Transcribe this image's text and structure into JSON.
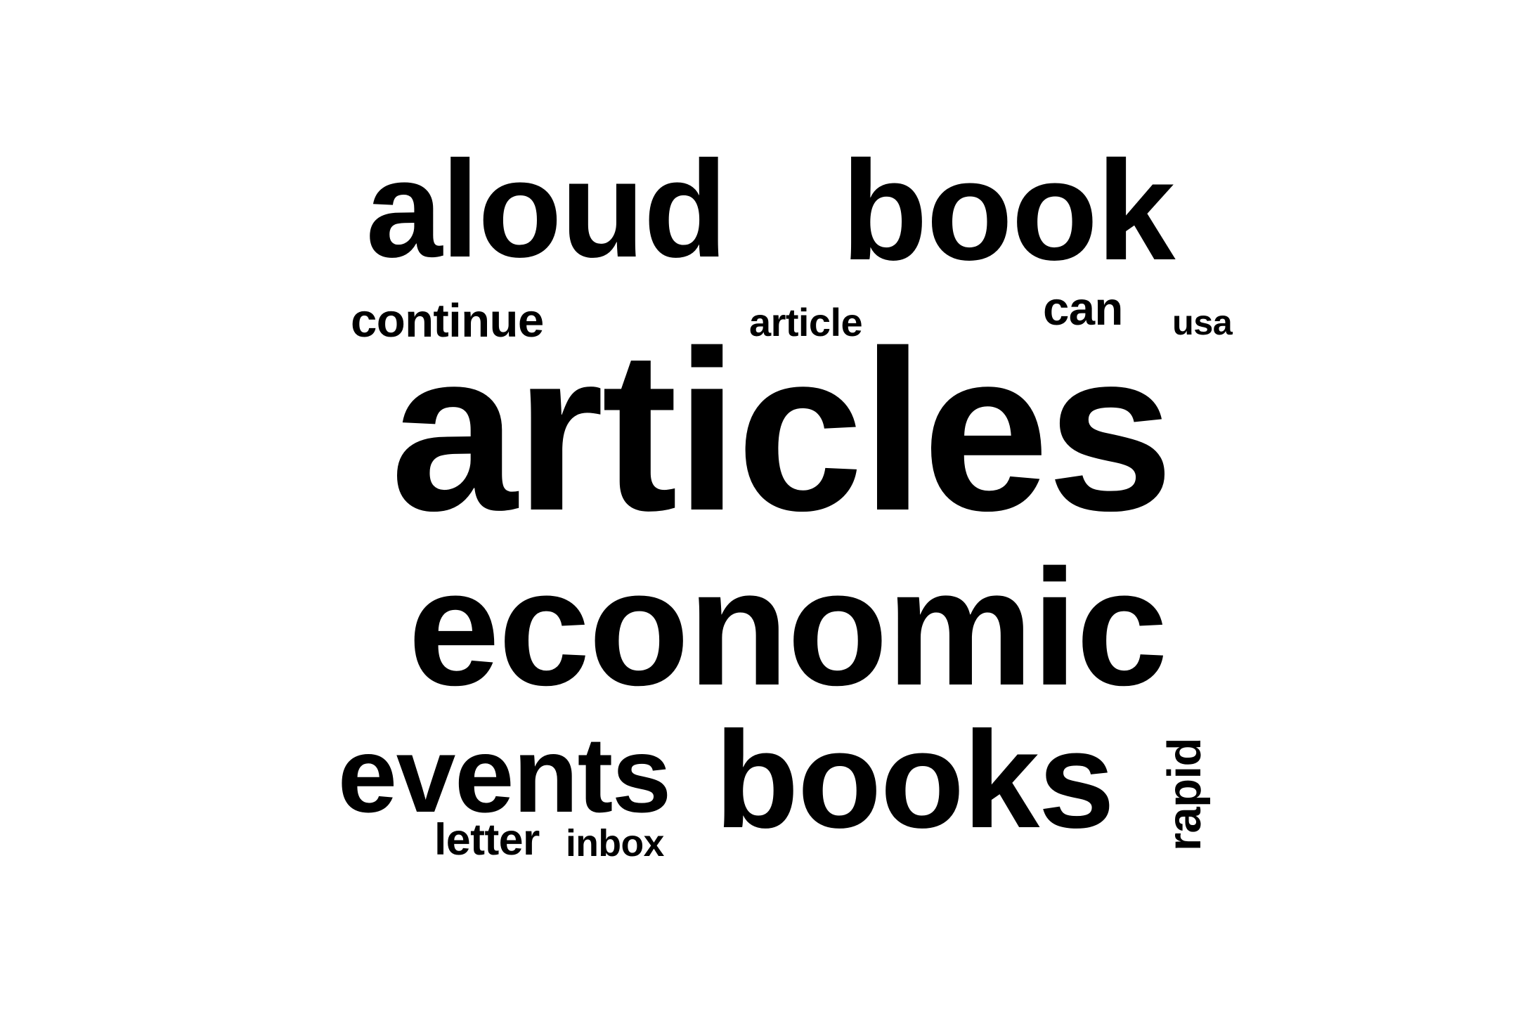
{
  "word_cloud": {
    "text_color": "#000000",
    "background_color": "#ffffff",
    "words": [
      {
        "text": "aloud",
        "rotated": false
      },
      {
        "text": "book",
        "rotated": false
      },
      {
        "text": "continue",
        "rotated": false
      },
      {
        "text": "article",
        "rotated": false
      },
      {
        "text": "can",
        "rotated": false
      },
      {
        "text": "usa",
        "rotated": false
      },
      {
        "text": "articles",
        "rotated": false
      },
      {
        "text": "economic",
        "rotated": false
      },
      {
        "text": "events",
        "rotated": false
      },
      {
        "text": "books",
        "rotated": false
      },
      {
        "text": "rapid",
        "rotated": true
      },
      {
        "text": "letter",
        "rotated": false
      },
      {
        "text": "inbox",
        "rotated": false
      }
    ]
  }
}
